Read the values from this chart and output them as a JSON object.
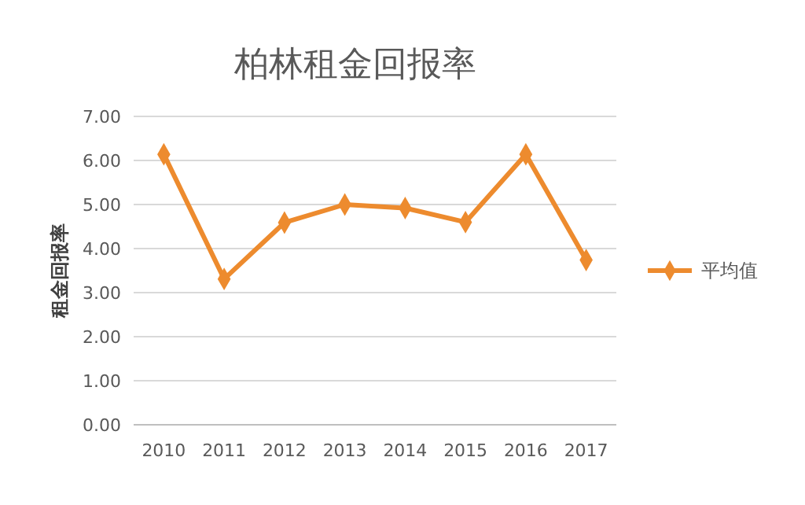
{
  "chart_data": {
    "type": "line",
    "title": "柏林租金回报率",
    "ylabel": "租金回报率",
    "categories": [
      "2010",
      "2011",
      "2012",
      "2013",
      "2014",
      "2015",
      "2016",
      "2017"
    ],
    "series": [
      {
        "name": "平均值",
        "color": "#ed8b2e",
        "values": [
          6.14,
          3.31,
          4.59,
          5.0,
          4.92,
          4.6,
          6.14,
          3.74
        ]
      }
    ],
    "ylim": [
      0,
      7
    ],
    "yticks": [
      {
        "value": 0,
        "label": "0.00"
      },
      {
        "value": 1,
        "label": "1.00"
      },
      {
        "value": 2,
        "label": "2.00"
      },
      {
        "value": 3,
        "label": "3.00"
      },
      {
        "value": 4,
        "label": "4.00"
      },
      {
        "value": 5,
        "label": "5.00"
      },
      {
        "value": 6,
        "label": "6.00"
      },
      {
        "value": 7,
        "label": "7.00"
      }
    ],
    "grid": "y",
    "legend": "right",
    "marker": "diamond",
    "line_style": "solid"
  }
}
